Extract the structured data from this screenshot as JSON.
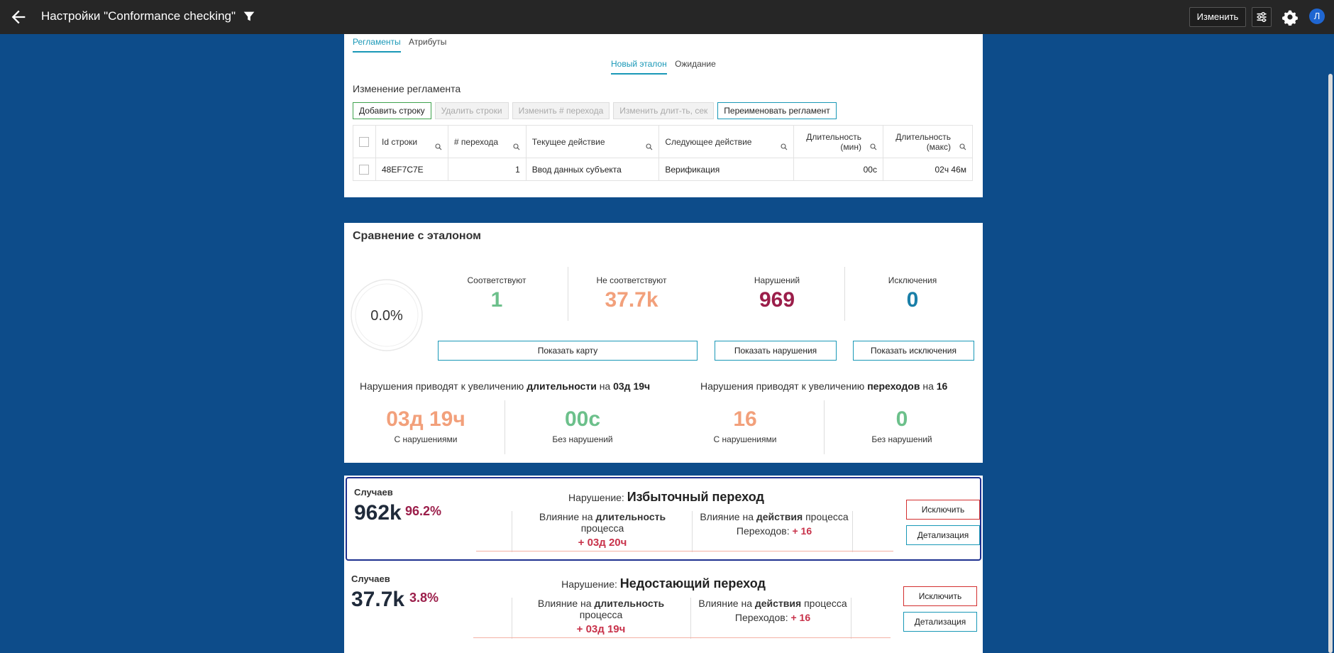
{
  "header": {
    "title": "Настройки \"Conformance checking\"",
    "edit_label": "Изменить",
    "avatar_letter": "Л"
  },
  "reglament": {
    "tabs": [
      "Регламенты",
      "Атрибуты"
    ],
    "subtabs": [
      "Новый эталон",
      "Ожидание"
    ],
    "section_label": "Изменение регламента",
    "actions": [
      "Добавить строку",
      "Удалить строки",
      "Изменить # перехода",
      "Изменить длит-ть, сек",
      "Переименовать регламент"
    ],
    "columns": [
      "Id строки",
      "# перехода",
      "Текущее действие",
      "Следующее действие",
      "Длительность (мин)",
      "Длительность (макс)"
    ],
    "rows": [
      {
        "id": "48EF7C7E",
        "step": "1",
        "current": "Ввод данных субъекта",
        "next": "Верификация",
        "min": "00с",
        "max": "02ч 46м"
      }
    ]
  },
  "comparison": {
    "heading": "Сравнение с эталоном",
    "gauge_value": "0.0%",
    "kpis": [
      {
        "label": "Соответствуют",
        "value": "1",
        "color": "#6cc08b"
      },
      {
        "label": "Не соответствуют",
        "value": "37.7k",
        "color": "#f2a07b"
      },
      {
        "label": "Нарушений",
        "value": "969",
        "color": "#9b1e4a"
      },
      {
        "label": "Исключения",
        "value": "0",
        "color": "#1a7fa8"
      }
    ],
    "buttons": [
      "Показать карту",
      "Показать нарушения",
      "Показать исключения"
    ],
    "duration_line": {
      "pre": "Нарушения приводят к увеличению ",
      "bold": "длительности",
      "mid": " на ",
      "bold2": "03д 19ч"
    },
    "transitions_line": {
      "pre": "Нарушения приводят к увеличению ",
      "bold": "переходов",
      "mid": " на ",
      "bold2": "16"
    },
    "bigs": [
      {
        "value": "03д 19ч",
        "caption": "С нарушениями",
        "color": "#f2a07b"
      },
      {
        "value": "00с",
        "caption": "Без нарушений",
        "color": "#6cc08b"
      },
      {
        "value": "16",
        "caption": "С нарушениями",
        "color": "#f2a07b"
      },
      {
        "value": "0",
        "caption": "Без нарушений",
        "color": "#6cc08b"
      }
    ]
  },
  "violations": [
    {
      "cases_label": "Случаев",
      "cases": "962k",
      "percent": "96.2%",
      "title_prefix": "Нарушение: ",
      "title": "Избыточный переход",
      "duration_pre": "Влияние на ",
      "duration_bold": "длительность",
      "duration_post": " процесса",
      "duration_value": "+ 03д 20ч",
      "actions_pre": "Влияние на ",
      "actions_bold": "действия",
      "actions_post": " процесса",
      "transitions_label": "Переходов: ",
      "transitions_value": "+ 16",
      "exclude_label": "Исключить",
      "detail_label": "Детализация"
    },
    {
      "cases_label": "Случаев",
      "cases": "37.7k",
      "percent": "3.8%",
      "title_prefix": "Нарушение: ",
      "title": "Недостающий переход",
      "duration_pre": "Влияние на ",
      "duration_bold": "длительность",
      "duration_post": " процесса",
      "duration_value": "+ 03д 19ч",
      "actions_pre": "Влияние на ",
      "actions_bold": "действия",
      "actions_post": " процесса",
      "transitions_label": "Переходов: ",
      "transitions_value": "+ 16",
      "exclude_label": "Исключить",
      "detail_label": "Детализация"
    }
  ]
}
